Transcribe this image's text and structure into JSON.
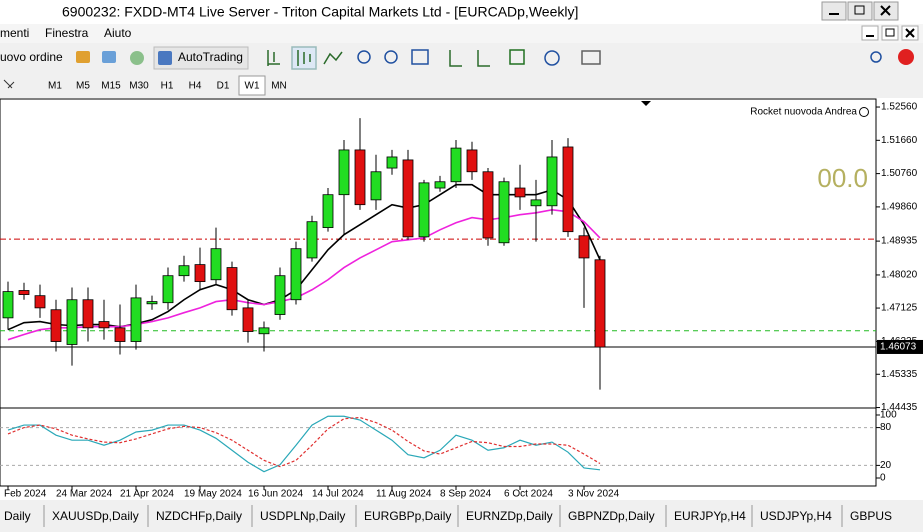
{
  "window": {
    "title": "6900232: FXDD-MT4 Live Server - Triton Capital Markets Ltd - [EURCADp,Weekly]"
  },
  "menu": {
    "items": [
      "menti",
      "Finestra",
      "Aiuto"
    ]
  },
  "toolbar": {
    "new_order": "uovo ordine",
    "autotrading": "AutoTrading"
  },
  "timeframes": {
    "items": [
      "M1",
      "M5",
      "M15",
      "M30",
      "H1",
      "H4",
      "D1",
      "W1",
      "MN"
    ],
    "active": "W1"
  },
  "chart_data": [
    {
      "type": "candlestick",
      "title": "Rocket nuovoda Andrea",
      "annotation": "00.0",
      "categories": [
        "Feb 2024",
        null,
        null,
        null,
        "24 Mar 2024",
        null,
        null,
        null,
        "21 Apr 2024",
        null,
        null,
        null,
        "19 May 2024",
        null,
        null,
        null,
        "16 Jun 2024",
        null,
        null,
        null,
        "14 Jul 2024",
        null,
        null,
        null,
        "11 Aug 2024",
        null,
        null,
        null,
        "8 Sep 2024",
        null,
        null,
        null,
        "6 Oct 2024",
        null,
        null,
        null,
        "3 Nov 2024",
        null
      ],
      "open": [
        1.4686,
        1.476,
        1.4746,
        1.4708,
        1.4614,
        1.4735,
        1.4676,
        1.4659,
        1.4622,
        1.4724,
        1.4727,
        1.48,
        1.483,
        1.4789,
        1.4822,
        1.4713,
        1.4643,
        1.4695,
        1.4735,
        1.4848,
        1.493,
        1.5019,
        1.514,
        1.5005,
        1.5091,
        1.5113,
        1.4905,
        1.5037,
        1.5054,
        1.514,
        1.5081,
        1.4889,
        1.5037,
        1.4989,
        1.4989,
        1.5148,
        1.4908,
        1.4843
      ],
      "high": [
        1.4784,
        1.4781,
        1.4776,
        1.4735,
        1.4768,
        1.4768,
        1.4735,
        1.4722,
        1.4776,
        1.4746,
        1.4822,
        1.4854,
        1.4876,
        1.493,
        1.4838,
        1.4735,
        1.4676,
        1.4822,
        1.4892,
        1.4962,
        1.5037,
        1.5167,
        1.5226,
        1.5127,
        1.514,
        1.514,
        1.5059,
        1.507,
        1.5167,
        1.5162,
        1.5091,
        1.5065,
        1.51,
        1.5059,
        1.5167,
        1.5172,
        1.493,
        1.4854
      ],
      "low": [
        1.4654,
        1.4735,
        1.4686,
        1.4595,
        1.4557,
        1.4622,
        1.4627,
        1.4587,
        1.46,
        1.4708,
        1.4708,
        1.4784,
        1.4762,
        1.4776,
        1.4692,
        1.4619,
        1.4595,
        1.4681,
        1.4722,
        1.4838,
        1.4919,
        1.4911,
        1.4978,
        1.4978,
        1.5073,
        1.4897,
        1.4892,
        1.5027,
        1.5037,
        1.5059,
        1.4881,
        1.4881,
        1.4978,
        1.4892,
        1.4965,
        1.4905,
        1.4713,
        1.4492
      ],
      "close": [
        1.4757,
        1.4749,
        1.4713,
        1.4622,
        1.4735,
        1.4659,
        1.4659,
        1.4622,
        1.474,
        1.473,
        1.48,
        1.4827,
        1.4784,
        1.4873,
        1.4708,
        1.4649,
        1.4659,
        1.48,
        1.4873,
        1.4946,
        1.5019,
        1.514,
        1.4992,
        1.5081,
        1.5121,
        1.4905,
        1.5051,
        1.5054,
        1.5145,
        1.5081,
        1.4902,
        1.5054,
        1.5013,
        1.5005,
        1.5121,
        1.4919,
        1.4848,
        1.4607
      ],
      "up_color": "#22dd22",
      "down_color": "#e01010",
      "series": [
        {
          "color": "#000000",
          "values": [
            1.4654,
            1.4673,
            1.4676,
            1.4668,
            1.4665,
            1.4668,
            1.4668,
            1.4662,
            1.467,
            1.4681,
            1.4703,
            1.4735,
            1.4762,
            1.4776,
            1.4762,
            1.4735,
            1.4722,
            1.4735,
            1.4762,
            1.4816,
            1.487,
            1.4911,
            1.4938,
            1.4965,
            1.4992,
            1.4983,
            1.4992,
            1.5019,
            1.5046,
            1.5046,
            1.5019,
            1.5019,
            1.5019,
            1.5019,
            1.5032,
            1.5005,
            1.4938,
            1.4843
          ]
        },
        {
          "color": "#ee22dd",
          "values": [
            1.4627,
            1.4641,
            1.4654,
            1.4659,
            1.4659,
            1.4662,
            1.4662,
            1.4662,
            1.4668,
            1.4676,
            1.4686,
            1.47,
            1.4713,
            1.473,
            1.4735,
            1.4727,
            1.4722,
            1.473,
            1.474,
            1.4762,
            1.4789,
            1.4822,
            1.4848,
            1.487,
            1.4892,
            1.4897,
            1.4902,
            1.4924,
            1.4943,
            1.4957,
            1.4951,
            1.4957,
            1.4965,
            1.497,
            1.4978,
            1.4973,
            1.4946,
            1.4902
          ]
        }
      ],
      "levels": [
        {
          "value": 1.4899,
          "color": "#cc0000"
        },
        {
          "value": 1.4651,
          "color": "#22bb22"
        }
      ],
      "current_price": {
        "value": 1.46073,
        "label": "1.46073"
      },
      "ylim": [
        1.4445,
        1.5275
      ],
      "yticks": [
        {
          "value": 1.5256,
          "label": "1.52560"
        },
        {
          "value": 1.5166,
          "label": "1.51660"
        },
        {
          "value": 1.5076,
          "label": "1.50760"
        },
        {
          "value": 1.4986,
          "label": "1.49860"
        },
        {
          "value": 1.48935,
          "label": "1.48935"
        },
        {
          "value": 1.4802,
          "label": "1.48020"
        },
        {
          "value": 1.47125,
          "label": "1.47125"
        },
        {
          "value": 1.46225,
          "label": "1.46225"
        },
        {
          "value": 1.45335,
          "label": "1.45335"
        },
        {
          "value": 1.44435,
          "label": "1.44435"
        }
      ]
    },
    {
      "type": "line",
      "series": [
        {
          "color": "#2aa8b8",
          "values": [
            76,
            84,
            84,
            68,
            60,
            60,
            52,
            60,
            73,
            76,
            84,
            84,
            76,
            63,
            44,
            25,
            10,
            21,
            52,
            84,
            98,
            98,
            92,
            76,
            60,
            37,
            32,
            44,
            68,
            60,
            44,
            48,
            60,
            52,
            57,
            41,
            16,
            13
          ]
        },
        {
          "color": "#e03030",
          "values": [
            70,
            80,
            84,
            78,
            68,
            62,
            57,
            56,
            62,
            70,
            78,
            82,
            80,
            72,
            60,
            44,
            28,
            18,
            28,
            52,
            78,
            94,
            96,
            88,
            76,
            58,
            43,
            38,
            48,
            58,
            56,
            50,
            50,
            54,
            54,
            52,
            38,
            23
          ]
        }
      ],
      "levels": [
        80,
        20
      ],
      "ylim": [
        -12.7,
        109.5
      ],
      "yticks": [
        100,
        80,
        20,
        0
      ]
    }
  ],
  "tabs": [
    "Daily",
    "XAUUSDp,Daily",
    "NZDCHFp,Daily",
    "USDPLNp,Daily",
    "EURGBPp,Daily",
    "EURNZDp,Daily",
    "GBPNZDp,Daily",
    "EURJPYp,H4",
    "USDJPYp,H4",
    "GBPUS"
  ]
}
